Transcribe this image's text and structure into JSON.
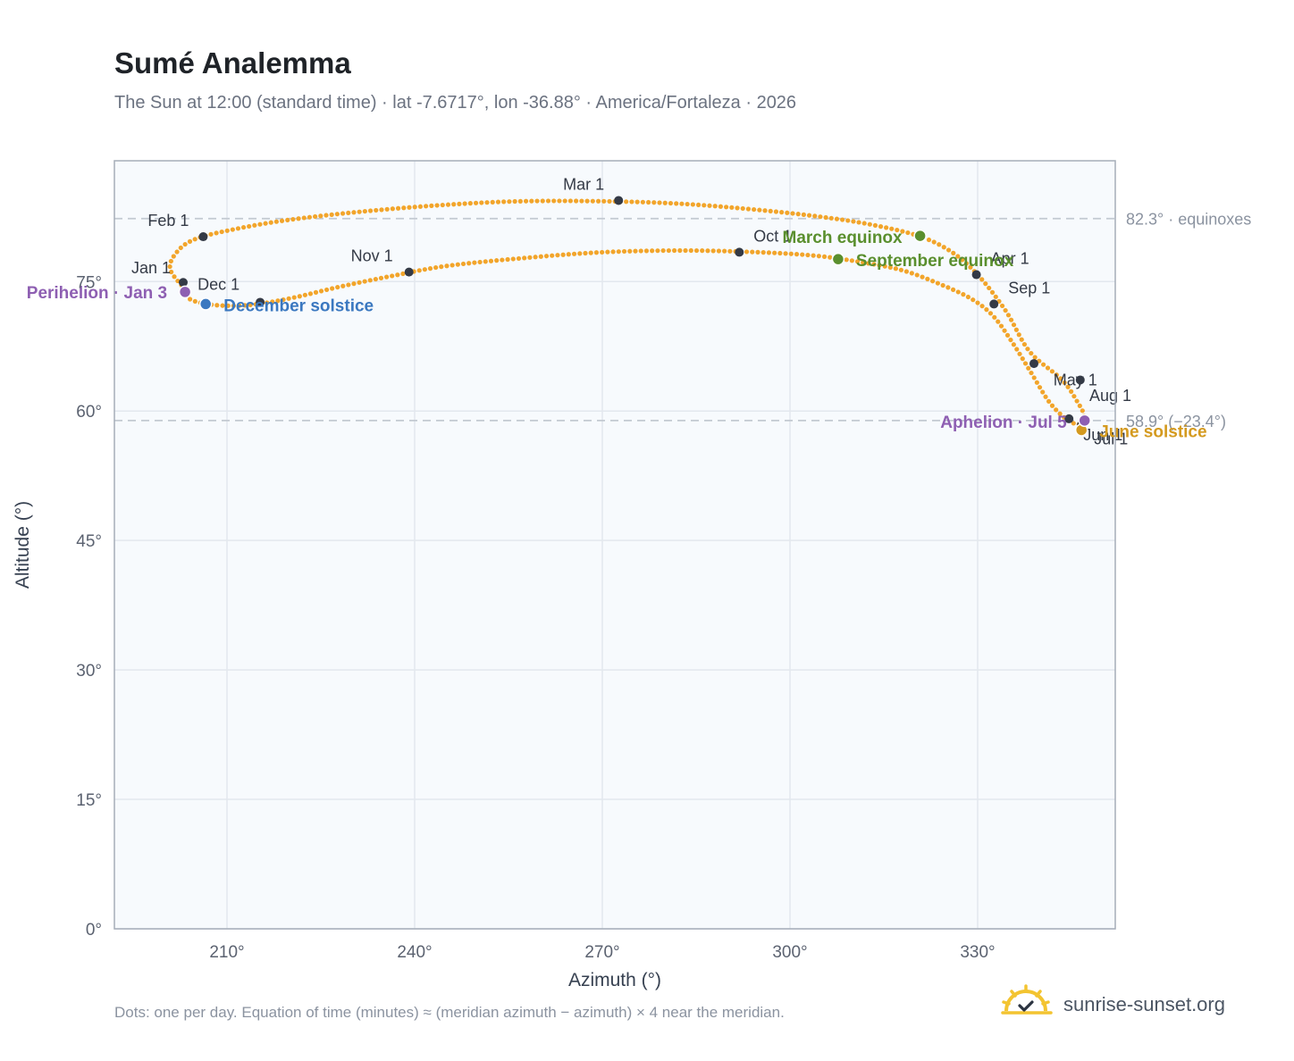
{
  "title": "Sumé Analemma",
  "subtitle": "The Sun at 12:00 (standard time) · lat -7.6717°, lon -36.88° · America/Fortaleza · 2026",
  "footnote": "Dots: one per day. Equation of time (minutes) ≈ (meridian azimuth − azimuth) × 4 near the meridian.",
  "brand": {
    "text": "sunrise-sunset.org",
    "icon": "sun-check-logo-icon"
  },
  "colors": {
    "curve": "#f2a52b",
    "month": "#343a46",
    "equinox": "#5a8f2e",
    "december": "#3b78c0",
    "june": "#d49a1f",
    "apsis": "#8e5fb2",
    "plot_bg": "#f7fafd",
    "grid": "#e3e8ee",
    "frame": "#a5adb8",
    "refline": "#c3c9d1"
  },
  "chart_data": {
    "type": "scatter",
    "title": "Sumé Analemma",
    "xlabel": "Azimuth (°)",
    "ylabel": "Altitude (°)",
    "xlim": [
      192,
      352
    ],
    "ylim": [
      0,
      89
    ],
    "x_ticks": [
      210,
      240,
      270,
      300,
      330
    ],
    "x_tick_labels": [
      "210°",
      "240°",
      "270°",
      "300°",
      "330°"
    ],
    "y_ticks": [
      0,
      15,
      30,
      45,
      60,
      75
    ],
    "y_tick_labels": [
      "0°",
      "15°",
      "30°",
      "45°",
      "60°",
      "75°"
    ],
    "grid": true,
    "reference_lines": [
      {
        "y": 82.3,
        "label": "82.3° · equinoxes"
      },
      {
        "y": 58.9,
        "label": "58.9° (−23.4°)"
      }
    ],
    "series": [
      {
        "name": "",
        "description_points": "daily positions (az, alt)",
        "points": [
          [
            203.3,
            74.1
          ],
          [
            200.9,
            76.5
          ],
          [
            202.2,
            78.6
          ],
          [
            205.2,
            80.0
          ],
          [
            211.4,
            81.1
          ],
          [
            219.4,
            82.1
          ],
          [
            230.0,
            83.0
          ],
          [
            243.0,
            83.8
          ],
          [
            256.5,
            84.3
          ],
          [
            271.0,
            84.3
          ],
          [
            283.0,
            84.0
          ],
          [
            295.0,
            83.3
          ],
          [
            305.0,
            82.5
          ],
          [
            313.0,
            81.6
          ],
          [
            320.5,
            80.3
          ],
          [
            325.7,
            78.5
          ],
          [
            330.0,
            75.8
          ],
          [
            334.5,
            71.6
          ],
          [
            338.3,
            66.9
          ],
          [
            343.5,
            63.6
          ],
          [
            346.0,
            61.0
          ],
          [
            347.0,
            59.5
          ],
          [
            346.5,
            58.5
          ],
          [
            344.5,
            58.9
          ],
          [
            341.5,
            61.0
          ],
          [
            338.5,
            64.5
          ],
          [
            335.5,
            68.0
          ],
          [
            332.5,
            71.0
          ],
          [
            329.0,
            73.0
          ],
          [
            324.0,
            74.7
          ],
          [
            318.0,
            76.3
          ],
          [
            311.0,
            77.3
          ],
          [
            304.0,
            78.0
          ],
          [
            295.0,
            78.4
          ],
          [
            283.0,
            78.6
          ],
          [
            270.0,
            78.4
          ],
          [
            257.0,
            77.7
          ],
          [
            245.0,
            76.8
          ],
          [
            236.0,
            75.6
          ],
          [
            228.0,
            74.4
          ],
          [
            221.0,
            73.2
          ],
          [
            215.0,
            72.4
          ],
          [
            210.5,
            72.2
          ],
          [
            206.8,
            72.4
          ],
          [
            204.0,
            73.0
          ],
          [
            203.3,
            74.1
          ]
        ]
      }
    ],
    "month_markers": [
      {
        "label": "Jan 1",
        "az": 203.0,
        "alt": 74.9
      },
      {
        "label": "Feb 1",
        "az": 206.2,
        "alt": 80.2
      },
      {
        "label": "Mar 1",
        "az": 272.6,
        "alt": 84.4
      },
      {
        "label": "Apr 1",
        "az": 329.8,
        "alt": 75.8
      },
      {
        "label": "May 1",
        "az": 346.4,
        "alt": 63.6
      },
      {
        "label": "Jun 1",
        "az": 344.6,
        "alt": 59.1
      },
      {
        "label": "Jul 1",
        "az": 346.6,
        "alt": 58.4
      },
      {
        "label": "Aug 1",
        "az": 339.0,
        "alt": 65.5
      },
      {
        "label": "Sep 1",
        "az": 332.6,
        "alt": 72.4
      },
      {
        "label": "Oct 1",
        "az": 291.9,
        "alt": 78.4
      },
      {
        "label": "Nov 1",
        "az": 239.1,
        "alt": 76.1
      },
      {
        "label": "Dec 1",
        "az": 215.3,
        "alt": 72.6
      }
    ],
    "highlights": [
      {
        "label": "March equinox",
        "az": 320.8,
        "alt": 80.3,
        "color_key": "equinox"
      },
      {
        "label": "September equinox",
        "az": 307.7,
        "alt": 77.6,
        "color_key": "equinox"
      },
      {
        "label": "December solstice",
        "az": 206.6,
        "alt": 72.4,
        "color_key": "december"
      },
      {
        "label": "June solstice",
        "az": 346.6,
        "alt": 57.8,
        "color_key": "june"
      },
      {
        "label": "Perihelion · Jan 3",
        "az": 203.3,
        "alt": 73.8,
        "color_key": "apsis"
      },
      {
        "label": "Aphelion · Jul 5",
        "az": 347.1,
        "alt": 58.9,
        "color_key": "apsis"
      }
    ]
  }
}
